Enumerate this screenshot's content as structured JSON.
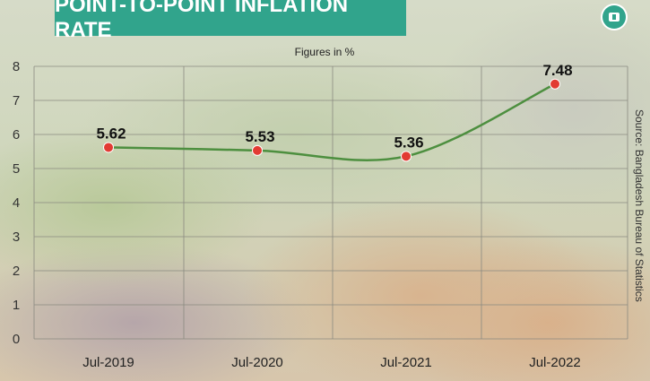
{
  "title": "POINT-TO-POINT INFLATION RATE",
  "subtitle": "Figures in %",
  "source": "Source: Bangladesh Bureau of Statistics",
  "logo_glyph": "ৎ",
  "colors": {
    "title_bg": "#31a48c",
    "line": "#4d8f3f",
    "marker": "#e23b33",
    "grid": "#8a8a80"
  },
  "chart_data": {
    "type": "line",
    "categories": [
      "Jul-2019",
      "Jul-2020",
      "Jul-2021",
      "Jul-2022"
    ],
    "values": [
      5.62,
      5.53,
      5.36,
      7.48
    ],
    "value_labels": [
      "5.62",
      "5.53",
      "5.36",
      "7.48"
    ],
    "ylim": [
      0,
      8
    ],
    "yticks": [
      "0",
      "1",
      "2",
      "3",
      "4",
      "5",
      "6",
      "7",
      "8"
    ],
    "grid": true,
    "smooth": true
  }
}
